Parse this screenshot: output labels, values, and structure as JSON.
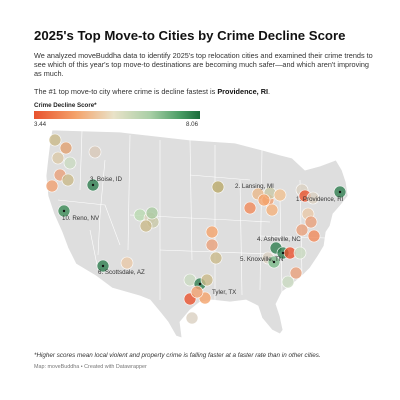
{
  "header": {
    "title": "2025's Top Move-to Cities by Crime Decline Score",
    "intro": "We analyzed moveBuddha data to identify 2025's top relocation cities and examined their crime trends to see which of this year's top move-to destinations are becoming much safer—and which aren't improving as much.",
    "highlight_prefix": "The #1 top move-to city where crime is decline fastest is ",
    "highlight_city": "Providence, RI",
    "highlight_suffix": "."
  },
  "legend": {
    "title": "Crime Decline Score*",
    "min_label": "3.44",
    "max_label": "8.06",
    "min_value": 3.44,
    "max_value": 8.06,
    "colors": [
      "#e8522e",
      "#f4a26a",
      "#e9e2c8",
      "#a9cfa6",
      "#4a9d65",
      "#1a6d3c"
    ]
  },
  "map_colors": {
    "land": "#dedede",
    "border": "#ffffff",
    "label": "#333333"
  },
  "labels": [
    {
      "id": "label-boise",
      "text": "3. Boise, ID"
    },
    {
      "id": "label-lansing",
      "text": "2. Lansing, MI"
    },
    {
      "id": "label-providence",
      "text": "1. Providence, RI"
    },
    {
      "id": "label-reno",
      "text": "10. Reno, NV"
    },
    {
      "id": "label-asheville",
      "text": "4. Asheville, NC"
    },
    {
      "id": "label-knoxville",
      "text": "5. Knoxville, TN"
    },
    {
      "id": "label-scottsdale",
      "text": "6. Scottsdale, AZ"
    },
    {
      "id": "label-tyler",
      "text": "Tyler, TX"
    }
  ],
  "footer": {
    "footnote": "*Higher scores mean local violent and property crime is falling faster at a faster rate than in other cities.",
    "source": "Map: moveBuddha • Created with Datawrapper"
  }
}
